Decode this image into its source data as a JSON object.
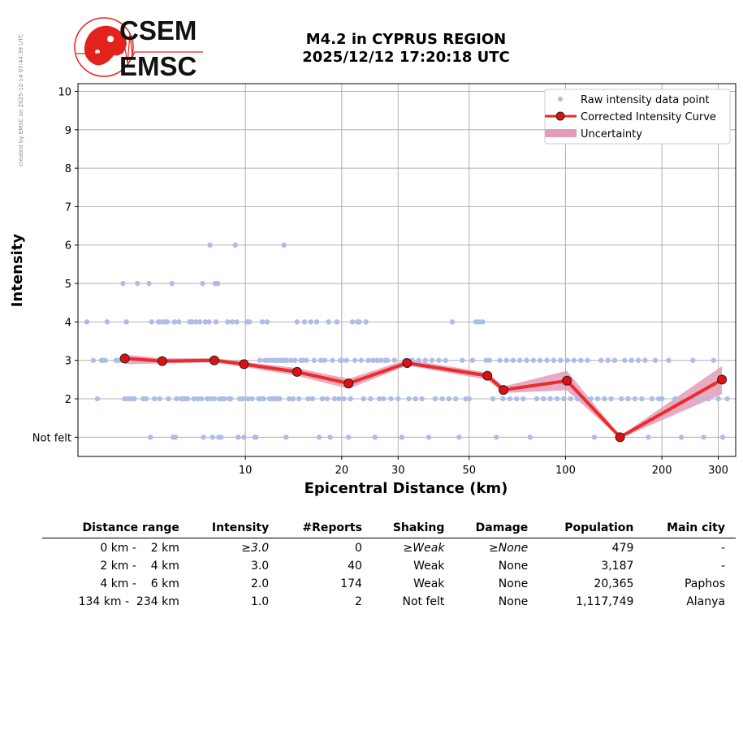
{
  "credit": "created by EMSC on 2025-12-14 07:44:39 UTC",
  "logo": {
    "line1": "CSEM",
    "line2": "EMSC",
    "color": "#e3221c"
  },
  "title": {
    "line1": "M4.2 in CYPRUS REGION",
    "line2": "2025/12/12 17:20:18 UTC"
  },
  "chart_data": {
    "type": "scatter",
    "xlabel": "Epicentral Distance (km)",
    "ylabel": "Intensity",
    "xscale": "log",
    "xlim": [
      3.0,
      340
    ],
    "ylim": [
      0.5,
      10.2
    ],
    "x_ticks": [
      10,
      20,
      30,
      50,
      100,
      200,
      300
    ],
    "y_ticks": [
      1,
      2,
      3,
      4,
      5,
      6,
      7,
      8,
      9,
      10
    ],
    "y_tick_labels": [
      "Not felt",
      "2",
      "3",
      "4",
      "5",
      "6",
      "7",
      "8",
      "9",
      "10"
    ],
    "grid": true,
    "legend_position": "top-right",
    "legend": [
      "Raw intensity data point",
      "Corrected Intensity Curve",
      "Uncertainty"
    ],
    "colors": {
      "raw": "#b0bce8",
      "curve": "#ee2a2a",
      "marker": "#e01010",
      "band": "#e39cba",
      "grid": "#b0b0b0"
    },
    "raw_points": [
      [
        3.2,
        4
      ],
      [
        3.35,
        3
      ],
      [
        3.45,
        2
      ],
      [
        3.55,
        3
      ],
      [
        3.6,
        3
      ],
      [
        3.65,
        3
      ],
      [
        3.7,
        4
      ],
      [
        3.95,
        3
      ],
      [
        4.05,
        3
      ],
      [
        4.15,
        5
      ],
      [
        4.2,
        2
      ],
      [
        4.25,
        4
      ],
      [
        4.3,
        2
      ],
      [
        4.4,
        2
      ],
      [
        4.5,
        2
      ],
      [
        4.55,
        3
      ],
      [
        4.6,
        5
      ],
      [
        4.8,
        2
      ],
      [
        4.9,
        2
      ],
      [
        5.0,
        5
      ],
      [
        5.05,
        1
      ],
      [
        5.1,
        4
      ],
      [
        5.2,
        2
      ],
      [
        5.35,
        4
      ],
      [
        5.4,
        2
      ],
      [
        5.5,
        4
      ],
      [
        5.6,
        4
      ],
      [
        5.7,
        4
      ],
      [
        5.75,
        2
      ],
      [
        5.9,
        5
      ],
      [
        5.95,
        1
      ],
      [
        6.0,
        4
      ],
      [
        6.05,
        1
      ],
      [
        6.1,
        2
      ],
      [
        6.2,
        4
      ],
      [
        6.3,
        2
      ],
      [
        6.4,
        2
      ],
      [
        6.5,
        2
      ],
      [
        6.6,
        2
      ],
      [
        6.7,
        4
      ],
      [
        6.8,
        4
      ],
      [
        6.9,
        2
      ],
      [
        7.0,
        4
      ],
      [
        7.1,
        2
      ],
      [
        7.2,
        4
      ],
      [
        7.3,
        2
      ],
      [
        7.35,
        5
      ],
      [
        7.4,
        1
      ],
      [
        7.5,
        4
      ],
      [
        7.6,
        2
      ],
      [
        7.7,
        4
      ],
      [
        7.75,
        6
      ],
      [
        7.8,
        2
      ],
      [
        7.9,
        1
      ],
      [
        8.0,
        2
      ],
      [
        8.05,
        5
      ],
      [
        8.1,
        4
      ],
      [
        8.2,
        5
      ],
      [
        8.25,
        1
      ],
      [
        8.3,
        2
      ],
      [
        8.4,
        1
      ],
      [
        8.5,
        2
      ],
      [
        8.6,
        2
      ],
      [
        8.8,
        4
      ],
      [
        8.9,
        2
      ],
      [
        9.0,
        2
      ],
      [
        9.1,
        4
      ],
      [
        9.3,
        6
      ],
      [
        9.4,
        4
      ],
      [
        9.5,
        1
      ],
      [
        9.6,
        2
      ],
      [
        9.8,
        2
      ],
      [
        9.9,
        1
      ],
      [
        10.1,
        4
      ],
      [
        10.2,
        2
      ],
      [
        10.3,
        4
      ],
      [
        10.5,
        2
      ],
      [
        10.7,
        1
      ],
      [
        10.8,
        1
      ],
      [
        11.0,
        2
      ],
      [
        11.1,
        3
      ],
      [
        11.2,
        2
      ],
      [
        11.3,
        4
      ],
      [
        11.4,
        2
      ],
      [
        11.5,
        3
      ],
      [
        11.7,
        4
      ],
      [
        11.8,
        3
      ],
      [
        11.9,
        2
      ],
      [
        12.0,
        2
      ],
      [
        12.1,
        3
      ],
      [
        12.2,
        2
      ],
      [
        12.3,
        3
      ],
      [
        12.4,
        2
      ],
      [
        12.5,
        3
      ],
      [
        12.6,
        2
      ],
      [
        12.7,
        3
      ],
      [
        12.8,
        2
      ],
      [
        12.9,
        3
      ],
      [
        13.1,
        3
      ],
      [
        13.2,
        6
      ],
      [
        13.3,
        3
      ],
      [
        13.4,
        1
      ],
      [
        13.5,
        3
      ],
      [
        13.7,
        2
      ],
      [
        13.9,
        3
      ],
      [
        14.1,
        2
      ],
      [
        14.3,
        3
      ],
      [
        14.5,
        4
      ],
      [
        14.7,
        2
      ],
      [
        14.9,
        3
      ],
      [
        15.1,
        3
      ],
      [
        15.3,
        4
      ],
      [
        15.5,
        3
      ],
      [
        15.7,
        2
      ],
      [
        16.0,
        4
      ],
      [
        16.2,
        2
      ],
      [
        16.4,
        3
      ],
      [
        16.7,
        4
      ],
      [
        17.0,
        1
      ],
      [
        17.2,
        3
      ],
      [
        17.4,
        2
      ],
      [
        17.7,
        3
      ],
      [
        18.0,
        2
      ],
      [
        18.2,
        4
      ],
      [
        18.4,
        1
      ],
      [
        18.7,
        3
      ],
      [
        19.0,
        2
      ],
      [
        19.3,
        4
      ],
      [
        19.6,
        2
      ],
      [
        19.8,
        3
      ],
      [
        20.0,
        3
      ],
      [
        20.3,
        2
      ],
      [
        20.7,
        3
      ],
      [
        21.0,
        1
      ],
      [
        21.3,
        2
      ],
      [
        21.6,
        4
      ],
      [
        22.0,
        3
      ],
      [
        22.4,
        4
      ],
      [
        22.7,
        4
      ],
      [
        23.0,
        3
      ],
      [
        23.4,
        2
      ],
      [
        23.8,
        4
      ],
      [
        24.2,
        3
      ],
      [
        24.6,
        2
      ],
      [
        25.0,
        3
      ],
      [
        25.4,
        1
      ],
      [
        25.8,
        3
      ],
      [
        26.2,
        2
      ],
      [
        26.6,
        3
      ],
      [
        27.0,
        2
      ],
      [
        27.4,
        3
      ],
      [
        27.8,
        3
      ],
      [
        28.5,
        2
      ],
      [
        29.2,
        3
      ],
      [
        30.0,
        2
      ],
      [
        30.8,
        1
      ],
      [
        31.6,
        3
      ],
      [
        32.4,
        2
      ],
      [
        33.2,
        3
      ],
      [
        34.0,
        2
      ],
      [
        34.8,
        3
      ],
      [
        35.6,
        2
      ],
      [
        36.5,
        3
      ],
      [
        37.4,
        1
      ],
      [
        38.3,
        3
      ],
      [
        39.2,
        2
      ],
      [
        40.2,
        3
      ],
      [
        41.2,
        2
      ],
      [
        42.2,
        3
      ],
      [
        43.2,
        2
      ],
      [
        44.3,
        4
      ],
      [
        45.4,
        2
      ],
      [
        46.5,
        1
      ],
      [
        47.6,
        3
      ],
      [
        48.8,
        2
      ],
      [
        50.0,
        2
      ],
      [
        51.2,
        3
      ],
      [
        52.5,
        4
      ],
      [
        53.8,
        4
      ],
      [
        55.1,
        4
      ],
      [
        56.5,
        3
      ],
      [
        57.9,
        3
      ],
      [
        59.3,
        2
      ],
      [
        60.8,
        1
      ],
      [
        62.3,
        3
      ],
      [
        63.8,
        2
      ],
      [
        65.4,
        3
      ],
      [
        67.0,
        2
      ],
      [
        68.6,
        3
      ],
      [
        70.3,
        2
      ],
      [
        72.0,
        3
      ],
      [
        73.8,
        2
      ],
      [
        75.6,
        3
      ],
      [
        77.5,
        1
      ],
      [
        79.4,
        3
      ],
      [
        81.3,
        2
      ],
      [
        83.3,
        3
      ],
      [
        85.4,
        2
      ],
      [
        87.5,
        3
      ],
      [
        89.6,
        2
      ],
      [
        91.8,
        3
      ],
      [
        94.1,
        2
      ],
      [
        96.4,
        3
      ],
      [
        98.8,
        2
      ],
      [
        101.2,
        3
      ],
      [
        103.7,
        2
      ],
      [
        106.3,
        3
      ],
      [
        108.9,
        2
      ],
      [
        111.6,
        3
      ],
      [
        114.3,
        2
      ],
      [
        117.1,
        3
      ],
      [
        120.0,
        2
      ],
      [
        123.0,
        1
      ],
      [
        126.0,
        2
      ],
      [
        129.1,
        3
      ],
      [
        132.3,
        2
      ],
      [
        135.6,
        3
      ],
      [
        138.9,
        2
      ],
      [
        142.3,
        3
      ],
      [
        145.8,
        1
      ],
      [
        149.4,
        2
      ],
      [
        153.1,
        3
      ],
      [
        156.9,
        2
      ],
      [
        160.8,
        3
      ],
      [
        164.8,
        2
      ],
      [
        168.8,
        3
      ],
      [
        173.0,
        2
      ],
      [
        177.2,
        3
      ],
      [
        181.6,
        1
      ],
      [
        186.1,
        2
      ],
      [
        190.7,
        3
      ],
      [
        195.4,
        2
      ],
      [
        200.2,
        2
      ],
      [
        210,
        3
      ],
      [
        220,
        2
      ],
      [
        230,
        1
      ],
      [
        240,
        2
      ],
      [
        250,
        3
      ],
      [
        260,
        2
      ],
      [
        270,
        1
      ],
      [
        280,
        2
      ],
      [
        290,
        3
      ],
      [
        300,
        2
      ],
      [
        310,
        1
      ],
      [
        320,
        2
      ]
    ],
    "curve": [
      {
        "x": 4.2,
        "y": 3.05,
        "lo": 2.9,
        "hi": 3.15
      },
      {
        "x": 5.5,
        "y": 2.98,
        "lo": 2.92,
        "hi": 3.05
      },
      {
        "x": 8.0,
        "y": 3.0,
        "lo": 2.95,
        "hi": 3.06
      },
      {
        "x": 9.9,
        "y": 2.9,
        "lo": 2.83,
        "hi": 2.96
      },
      {
        "x": 14.5,
        "y": 2.7,
        "lo": 2.6,
        "hi": 2.8
      },
      {
        "x": 21.0,
        "y": 2.4,
        "lo": 2.26,
        "hi": 2.52
      },
      {
        "x": 32.0,
        "y": 2.93,
        "lo": 2.87,
        "hi": 3.02
      },
      {
        "x": 57.0,
        "y": 2.6,
        "lo": 2.5,
        "hi": 2.68
      },
      {
        "x": 64.0,
        "y": 2.23,
        "lo": 2.15,
        "hi": 2.32
      },
      {
        "x": 101.0,
        "y": 2.47,
        "lo": 2.22,
        "hi": 2.73
      },
      {
        "x": 148.0,
        "y": 1.0,
        "lo": 0.97,
        "hi": 1.03
      },
      {
        "x": 308.0,
        "y": 2.5,
        "lo": 2.12,
        "hi": 2.85
      }
    ]
  },
  "table": {
    "headers": [
      "Distance range",
      "Intensity",
      "#Reports",
      "Shaking",
      "Damage",
      "Population",
      "Main city"
    ],
    "rows": [
      [
        "0 km -    2 km",
        "≥3.0",
        "0",
        "≥Weak",
        "≥None",
        "479",
        "-"
      ],
      [
        "2 km -    4 km",
        "3.0",
        "40",
        "Weak",
        "None",
        "3,187",
        "-"
      ],
      [
        "4 km -    6 km",
        "2.0",
        "174",
        "Weak",
        "None",
        "20,365",
        "Paphos"
      ],
      [
        "134 km -  234 km",
        "1.0",
        "2",
        "Not felt",
        "None",
        "1,117,749",
        "Alanya"
      ]
    ]
  }
}
